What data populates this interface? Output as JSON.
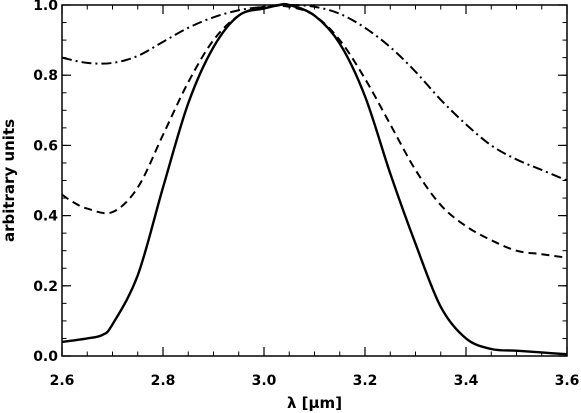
{
  "chart_data": {
    "type": "line",
    "title": "",
    "xlabel": "λ [μm]",
    "ylabel": "arbitrary units",
    "xlim": [
      2.6,
      3.6
    ],
    "ylim": [
      0.0,
      1.0
    ],
    "x_ticks": [
      2.6,
      2.8,
      3.0,
      3.2,
      3.4,
      3.6
    ],
    "y_ticks": [
      0.0,
      0.2,
      0.4,
      0.6,
      0.8,
      1.0
    ],
    "x_tick_labels": [
      "2.6",
      "2.8",
      "3.0",
      "3.2",
      "3.4",
      "3.6"
    ],
    "y_tick_labels": [
      "0.0",
      "0.2",
      "0.4",
      "0.6",
      "0.8",
      "1.0"
    ],
    "grid": false,
    "legend": "none",
    "series": [
      {
        "style": "solid",
        "x": [
          2.6,
          2.65,
          2.68,
          2.7,
          2.75,
          2.8,
          2.85,
          2.9,
          2.95,
          3.0,
          3.03,
          3.05,
          3.1,
          3.15,
          3.2,
          3.25,
          3.3,
          3.35,
          3.4,
          3.45,
          3.5,
          3.55,
          3.6
        ],
        "y": [
          0.04,
          0.05,
          0.06,
          0.09,
          0.23,
          0.48,
          0.72,
          0.88,
          0.97,
          0.99,
          1.0,
          1.0,
          0.97,
          0.89,
          0.74,
          0.52,
          0.32,
          0.14,
          0.05,
          0.02,
          0.015,
          0.01,
          0.005
        ]
      },
      {
        "style": "dashed",
        "x": [
          2.6,
          2.62,
          2.65,
          2.7,
          2.75,
          2.8,
          2.85,
          2.9,
          2.95,
          3.0,
          3.05,
          3.1,
          3.15,
          3.2,
          3.25,
          3.3,
          3.35,
          3.4,
          3.45,
          3.5,
          3.55,
          3.6
        ],
        "y": [
          0.46,
          0.44,
          0.42,
          0.41,
          0.48,
          0.63,
          0.78,
          0.9,
          0.97,
          0.995,
          0.995,
          0.97,
          0.9,
          0.79,
          0.66,
          0.53,
          0.43,
          0.37,
          0.33,
          0.3,
          0.29,
          0.28
        ]
      },
      {
        "style": "dash-dot",
        "x": [
          2.6,
          2.65,
          2.7,
          2.75,
          2.8,
          2.85,
          2.9,
          2.95,
          3.0,
          3.05,
          3.1,
          3.15,
          3.2,
          3.25,
          3.3,
          3.35,
          3.4,
          3.45,
          3.5,
          3.55,
          3.6
        ],
        "y": [
          0.85,
          0.835,
          0.835,
          0.855,
          0.895,
          0.935,
          0.965,
          0.985,
          0.995,
          1.0,
          0.995,
          0.975,
          0.935,
          0.88,
          0.81,
          0.73,
          0.66,
          0.6,
          0.56,
          0.53,
          0.5
        ]
      }
    ]
  }
}
